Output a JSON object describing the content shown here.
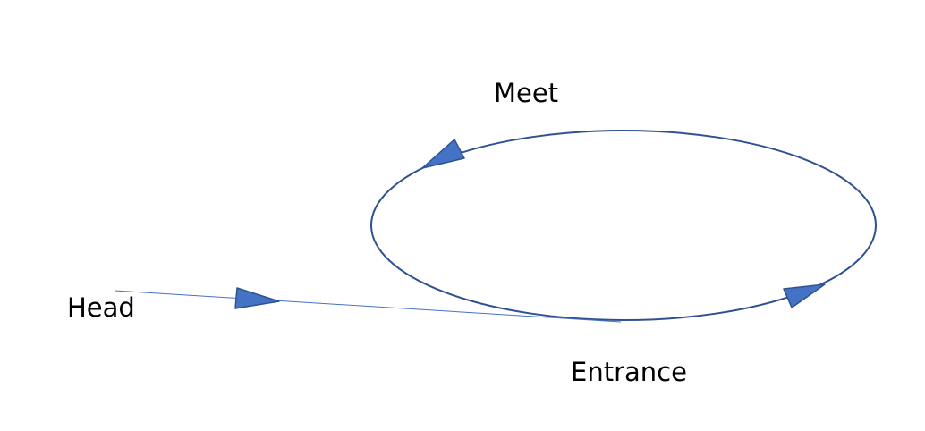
{
  "labels": {
    "meet": "Meet",
    "head": "Head",
    "entrance": "Entrance"
  },
  "colors": {
    "line": "#2f528f",
    "arrow_fill": "#4472c4",
    "text": "#000000"
  },
  "shapes": {
    "cycle": "ellipse",
    "arrow_style": "triangle"
  }
}
